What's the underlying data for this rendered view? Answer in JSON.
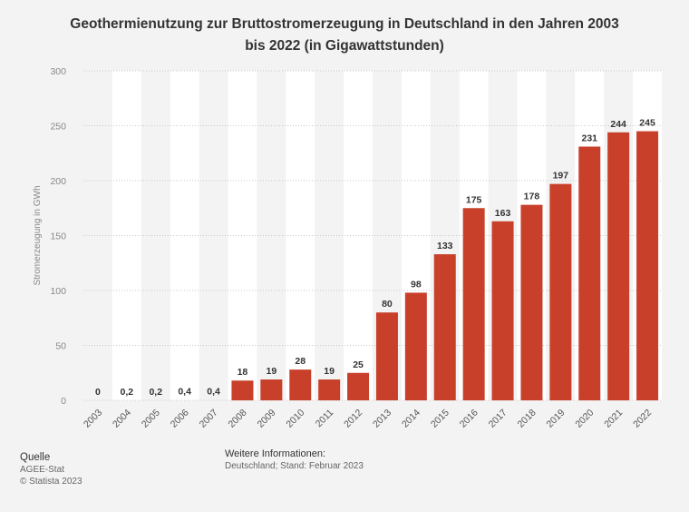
{
  "title_lines": [
    "Geothermienutzung zur Bruttostromerzeugung in Deutschland in den Jahren 2003",
    "bis 2022 (in Gigawattstunden)"
  ],
  "source": {
    "heading": "Quelle",
    "lines": [
      "AGEE-Stat",
      "© Statista 2023"
    ]
  },
  "info": {
    "heading": "Weitere Informationen:",
    "line": "Deutschland; Stand: Februar 2023"
  },
  "colors": {
    "bar": "#c9402a",
    "band": "#ffffff",
    "grid": "#c8c8c8",
    "axis_text": "#888888",
    "label_text": "#333333"
  },
  "chart_data": {
    "type": "bar",
    "categories": [
      "2003",
      "2004",
      "2005",
      "2006",
      "2007",
      "2008",
      "2009",
      "2010",
      "2011",
      "2012",
      "2013",
      "2014",
      "2015",
      "2016",
      "2017",
      "2018",
      "2019",
      "2020",
      "2021",
      "2022"
    ],
    "values": [
      0,
      0.2,
      0.2,
      0.4,
      0.4,
      18,
      19,
      28,
      19,
      25,
      80,
      98,
      133,
      175,
      163,
      178,
      197,
      231,
      244,
      245
    ],
    "value_labels": [
      "0",
      "0,2",
      "0,2",
      "0,4",
      "0,4",
      "18",
      "19",
      "28",
      "19",
      "25",
      "80",
      "98",
      "133",
      "175",
      "163",
      "178",
      "197",
      "231",
      "244",
      "245"
    ],
    "ylabel": "Stromerzeugung in GWh",
    "xlabel": "",
    "ylim": [
      0,
      300
    ],
    "yticks": [
      0,
      50,
      100,
      150,
      200,
      250,
      300
    ],
    "grid": true,
    "legend": "none"
  }
}
